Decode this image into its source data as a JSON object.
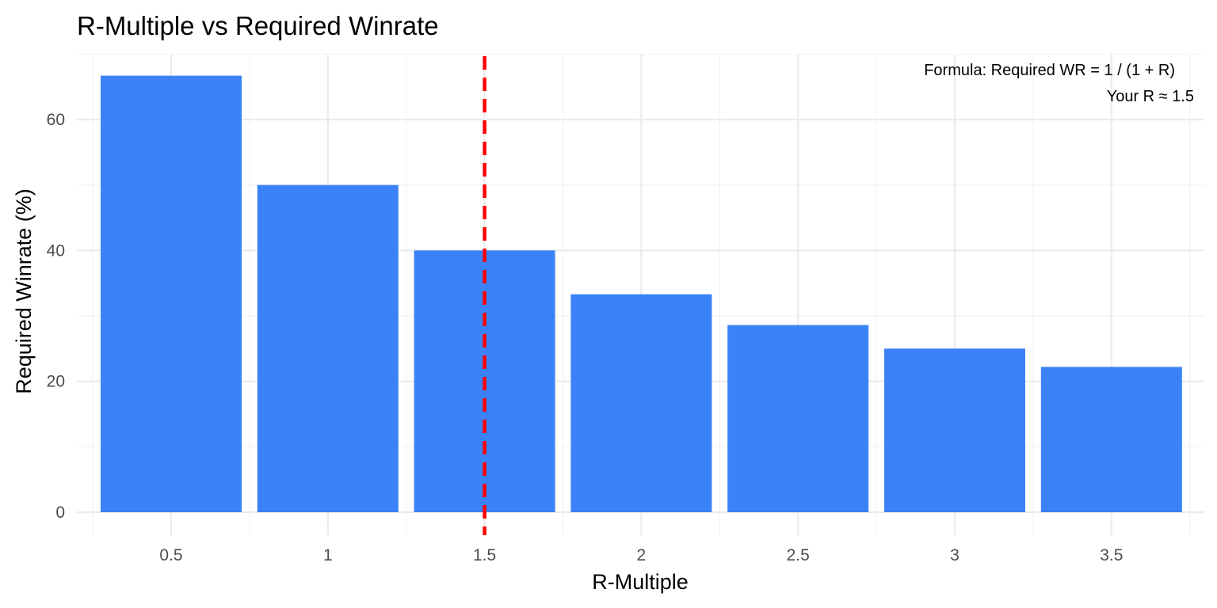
{
  "chart_data": {
    "type": "bar",
    "title": "R-Multiple vs Required Winrate",
    "xlabel": "R-Multiple",
    "ylabel": "Required Winrate (%)",
    "categories": [
      "0.5",
      "1",
      "1.5",
      "2",
      "2.5",
      "3",
      "3.5"
    ],
    "x": [
      0.5,
      1,
      1.5,
      2,
      2.5,
      3,
      3.5
    ],
    "values": [
      66.7,
      50.0,
      40.0,
      33.3,
      28.6,
      25.0,
      22.2
    ],
    "ylim": [
      0,
      70
    ],
    "yticks": [
      0,
      20,
      40,
      60
    ],
    "grid": true,
    "bar_color": "#3b82f6",
    "reference_line": {
      "x": 1.5,
      "style": "dashed",
      "color": "#ff0000"
    },
    "annotations": [
      "Formula: Required WR = 1 / (1 + R)",
      "Your R ≈ 1.5"
    ]
  }
}
